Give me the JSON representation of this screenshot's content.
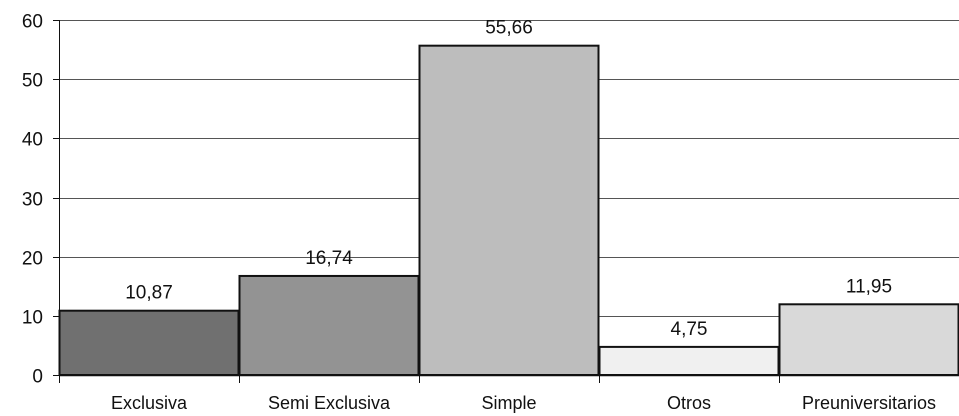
{
  "chart_data": {
    "type": "bar",
    "title": "",
    "xlabel": "",
    "ylabel": "",
    "categories": [
      "Exclusiva",
      "Semi Exclusiva",
      "Simple",
      "Otros",
      "Preuniversitarios"
    ],
    "values": [
      10.87,
      16.74,
      55.66,
      4.75,
      11.95
    ],
    "data_labels": [
      "10,87",
      "16,74",
      "55,66",
      "4,75",
      "11,95"
    ],
    "ylim": [
      0,
      60
    ],
    "yticks": [
      0,
      10,
      20,
      30,
      40,
      50,
      60
    ],
    "ytick_labels": [
      "0",
      "10",
      "20",
      "30",
      "40",
      "50",
      "60"
    ],
    "grid": true,
    "legend": "none",
    "bar_colors": [
      "#707070",
      "#939393",
      "#bdbdbd",
      "#f0f0f0",
      "#d9d9d9"
    ],
    "bar_edge_color": "#111111",
    "gridline_color": "#555555"
  }
}
